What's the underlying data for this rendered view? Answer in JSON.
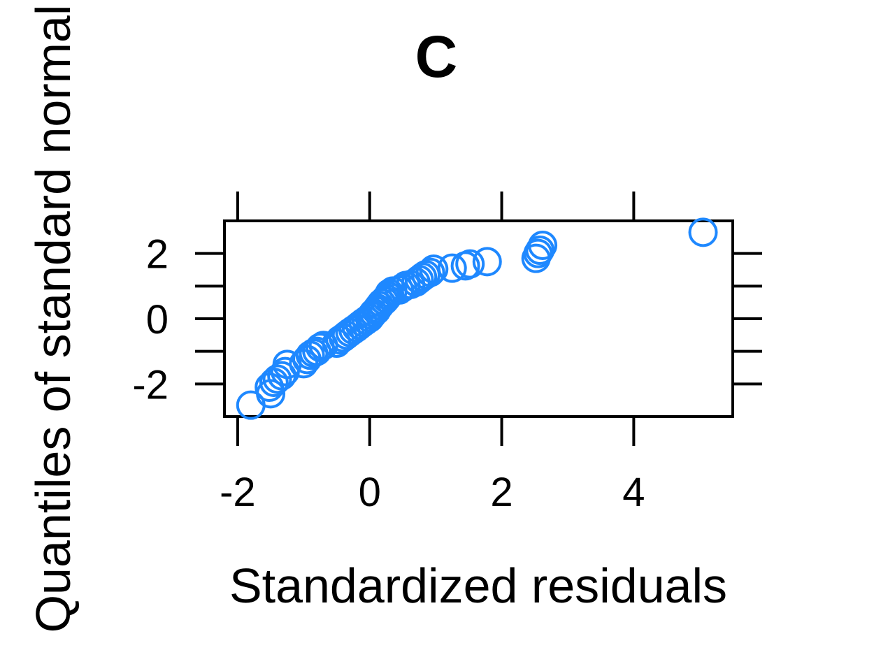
{
  "chart_data": {
    "type": "scatter",
    "title": "C",
    "xlabel": "Standardized residuals",
    "ylabel": "Quantiles of standard normal",
    "xlim": [
      -2.2,
      5.5
    ],
    "ylim": [
      -3.0,
      3.0
    ],
    "x_ticks": [
      -2,
      0,
      2,
      4
    ],
    "x_tick_labels": [
      "-2",
      "0",
      "2",
      "4"
    ],
    "y_ticks": [
      -2,
      -1,
      0,
      1,
      2
    ],
    "y_tick_labels": [
      "-2",
      "",
      "0",
      "",
      "2"
    ],
    "grid": false,
    "marker": "open-circle",
    "color": "#1e88ff",
    "points": [
      [
        -1.8,
        -2.65
      ],
      [
        -1.5,
        -2.3
      ],
      [
        -1.52,
        -2.1
      ],
      [
        -1.45,
        -1.95
      ],
      [
        -1.4,
        -1.85
      ],
      [
        -1.33,
        -1.75
      ],
      [
        -1.28,
        -1.62
      ],
      [
        -1.25,
        -1.4
      ],
      [
        -1.0,
        -1.38
      ],
      [
        -0.95,
        -1.25
      ],
      [
        -0.9,
        -1.12
      ],
      [
        -0.85,
        -1.05
      ],
      [
        -0.8,
        -1.0
      ],
      [
        -0.75,
        -0.88
      ],
      [
        -0.7,
        -0.82
      ],
      [
        -0.5,
        -0.75
      ],
      [
        -0.45,
        -0.65
      ],
      [
        -0.4,
        -0.58
      ],
      [
        -0.35,
        -0.5
      ],
      [
        -0.3,
        -0.42
      ],
      [
        -0.25,
        -0.35
      ],
      [
        -0.2,
        -0.28
      ],
      [
        -0.15,
        -0.2
      ],
      [
        -0.1,
        -0.12
      ],
      [
        -0.05,
        -0.05
      ],
      [
        0.0,
        0.02
      ],
      [
        0.03,
        0.1
      ],
      [
        0.06,
        0.18
      ],
      [
        0.1,
        0.25
      ],
      [
        0.12,
        0.32
      ],
      [
        0.15,
        0.4
      ],
      [
        0.18,
        0.48
      ],
      [
        0.22,
        0.55
      ],
      [
        0.25,
        0.62
      ],
      [
        0.28,
        0.7
      ],
      [
        0.3,
        0.78
      ],
      [
        0.35,
        0.85
      ],
      [
        0.45,
        0.88
      ],
      [
        0.5,
        0.95
      ],
      [
        0.55,
        1.02
      ],
      [
        0.62,
        1.05
      ],
      [
        0.7,
        1.12
      ],
      [
        0.75,
        1.2
      ],
      [
        0.8,
        1.28
      ],
      [
        0.85,
        1.35
      ],
      [
        0.92,
        1.42
      ],
      [
        0.97,
        1.52
      ],
      [
        1.25,
        1.55
      ],
      [
        1.45,
        1.62
      ],
      [
        1.52,
        1.68
      ],
      [
        1.78,
        1.75
      ],
      [
        2.52,
        1.85
      ],
      [
        2.55,
        2.0
      ],
      [
        2.58,
        2.1
      ],
      [
        2.62,
        2.25
      ],
      [
        5.05,
        2.65
      ]
    ]
  }
}
